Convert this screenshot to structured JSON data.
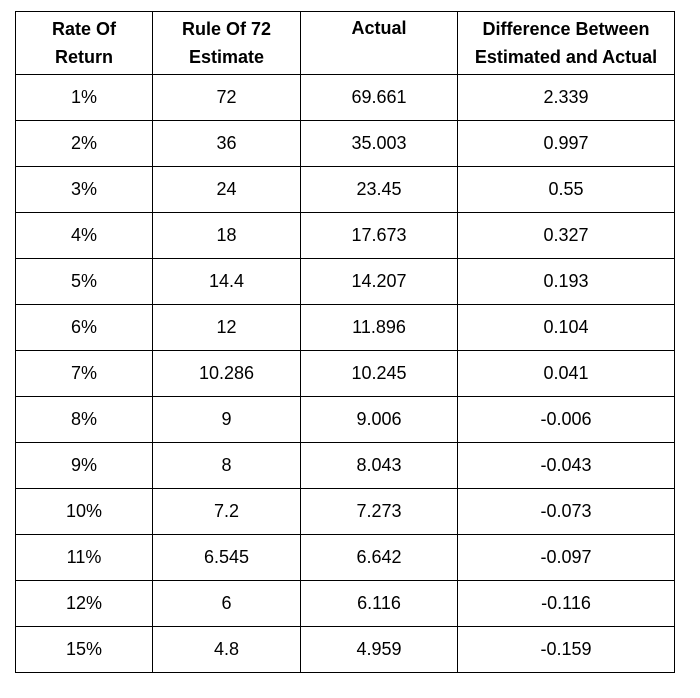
{
  "table": {
    "headers": [
      [
        "Rate Of",
        "Return"
      ],
      [
        "Rule Of 72",
        "Estimate"
      ],
      [
        "Actual",
        ""
      ],
      [
        "Difference Between",
        "Estimated and Actual"
      ]
    ],
    "rows": [
      [
        "1%",
        "72",
        "69.661",
        "2.339"
      ],
      [
        "2%",
        "36",
        "35.003",
        "0.997"
      ],
      [
        "3%",
        "24",
        "23.45",
        "0.55"
      ],
      [
        "4%",
        "18",
        "17.673",
        "0.327"
      ],
      [
        "5%",
        "14.4",
        "14.207",
        "0.193"
      ],
      [
        "6%",
        "12",
        "11.896",
        "0.104"
      ],
      [
        "7%",
        "10.286",
        "10.245",
        "0.041"
      ],
      [
        "8%",
        "9",
        "9.006",
        "-0.006"
      ],
      [
        "9%",
        "8",
        "8.043",
        "-0.043"
      ],
      [
        "10%",
        "7.2",
        "7.273",
        "-0.073"
      ],
      [
        "11%",
        "6.545",
        "6.642",
        "-0.097"
      ],
      [
        "12%",
        "6",
        "6.116",
        "-0.116"
      ],
      [
        "15%",
        "4.8",
        "4.959",
        "-0.159"
      ]
    ]
  }
}
